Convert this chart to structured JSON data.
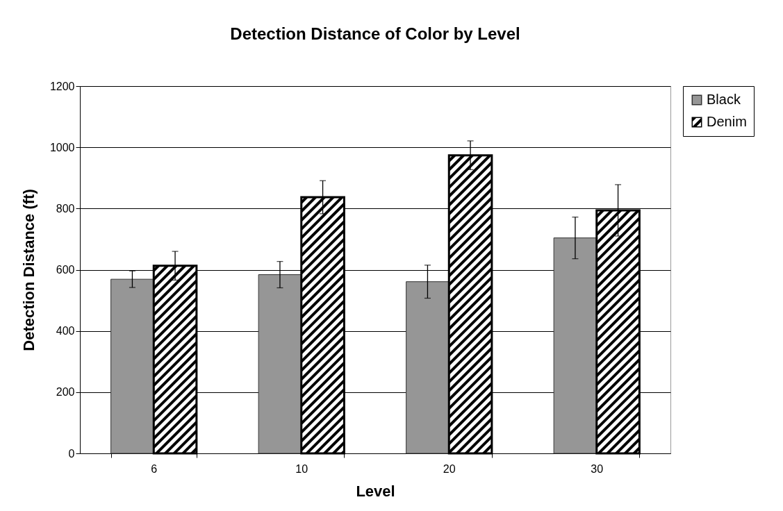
{
  "chart_data": {
    "type": "bar",
    "title": "Detection Distance of Color by Level",
    "xlabel": "Level",
    "ylabel": "Detection Distance (ft)",
    "categories": [
      "6",
      "10",
      "20",
      "30"
    ],
    "series": [
      {
        "name": "Black",
        "color": "#969696",
        "values": [
          569,
          584,
          561,
          704
        ],
        "errors": [
          27,
          43,
          54,
          68
        ]
      },
      {
        "name": "Denim",
        "color": "#000000",
        "values": [
          613,
          837,
          974,
          794
        ],
        "errors": [
          47,
          54,
          47,
          84
        ]
      }
    ],
    "ylim": [
      0,
      1200
    ],
    "yticks": [
      0,
      200,
      400,
      600,
      800,
      1000,
      1200
    ],
    "grid": "y",
    "legend": "right"
  }
}
